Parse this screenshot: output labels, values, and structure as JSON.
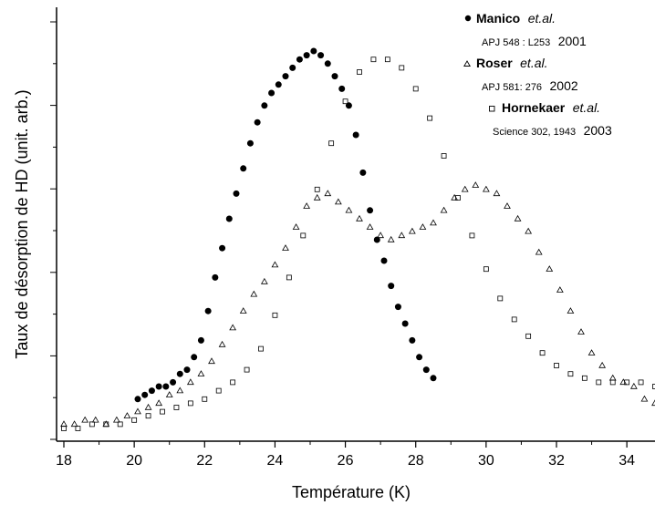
{
  "chart_data": {
    "type": "scatter",
    "xlabel": "Température (K)",
    "ylabel": "Taux de désorption de HD (unit. arb.)",
    "xlim": [
      18,
      34.8
    ],
    "ylim": [
      0,
      1
    ],
    "xticks": [
      18,
      20,
      22,
      24,
      26,
      28,
      30,
      32,
      34
    ],
    "xtick_labels": [
      "18",
      "20",
      "22",
      "24",
      "26",
      "28",
      "30",
      "32",
      "34"
    ],
    "y_tick_labels_shown": false,
    "grid": false,
    "legend_position": "top-right",
    "legend": [
      {
        "marker": "filled-circle",
        "name": "Manico",
        "etal": "et.al.",
        "ref": "APJ 548 : L253",
        "year": "2001"
      },
      {
        "marker": "open-triangle",
        "name": "Roser",
        "etal": "et.al.",
        "ref": "APJ 581: 276",
        "year": "2002"
      },
      {
        "marker": "open-square",
        "name": "Hornekaer",
        "etal": "et.al.",
        "ref": "Science 302, 1943",
        "year": "2003"
      }
    ],
    "series": [
      {
        "marker": "filled-circle",
        "x": [
          20.1,
          20.3,
          20.5,
          20.7,
          20.9,
          21.1,
          21.3,
          21.5,
          21.7,
          21.9,
          22.1,
          22.3,
          22.5,
          22.7,
          22.9,
          23.1,
          23.3,
          23.5,
          23.7,
          23.9,
          24.1,
          24.3,
          24.5,
          24.7,
          24.9,
          25.1,
          25.3,
          25.5,
          25.7,
          25.9,
          26.1,
          26.3,
          26.5,
          26.7,
          26.9,
          27.1,
          27.3,
          27.5,
          27.7,
          27.9,
          28.1,
          28.3,
          28.5
        ],
        "y": [
          0.07,
          0.08,
          0.09,
          0.1,
          0.1,
          0.11,
          0.13,
          0.14,
          0.17,
          0.21,
          0.28,
          0.36,
          0.43,
          0.5,
          0.56,
          0.62,
          0.68,
          0.73,
          0.77,
          0.8,
          0.82,
          0.84,
          0.86,
          0.88,
          0.89,
          0.9,
          0.89,
          0.87,
          0.84,
          0.81,
          0.77,
          0.7,
          0.61,
          0.52,
          0.45,
          0.4,
          0.34,
          0.29,
          0.25,
          0.21,
          0.17,
          0.14,
          0.12
        ]
      },
      {
        "marker": "open-triangle",
        "x": [
          18.0,
          18.3,
          18.6,
          18.9,
          19.2,
          19.5,
          19.8,
          20.1,
          20.4,
          20.7,
          21.0,
          21.3,
          21.6,
          21.9,
          22.2,
          22.5,
          22.8,
          23.1,
          23.4,
          23.7,
          24.0,
          24.3,
          24.6,
          24.9,
          25.2,
          25.5,
          25.8,
          26.1,
          26.4,
          26.7,
          27.0,
          27.3,
          27.6,
          27.9,
          28.2,
          28.5,
          28.8,
          29.1,
          29.4,
          29.7,
          30.0,
          30.3,
          30.6,
          30.9,
          31.2,
          31.5,
          31.8,
          32.1,
          32.4,
          32.7,
          33.0,
          33.3,
          33.6,
          33.9,
          34.2,
          34.5,
          34.8
        ],
        "y": [
          0.01,
          0.01,
          0.02,
          0.02,
          0.01,
          0.02,
          0.03,
          0.04,
          0.05,
          0.06,
          0.08,
          0.09,
          0.11,
          0.13,
          0.16,
          0.2,
          0.24,
          0.28,
          0.32,
          0.35,
          0.39,
          0.43,
          0.48,
          0.53,
          0.55,
          0.56,
          0.54,
          0.52,
          0.5,
          0.48,
          0.46,
          0.45,
          0.46,
          0.47,
          0.48,
          0.49,
          0.52,
          0.55,
          0.57,
          0.58,
          0.57,
          0.56,
          0.53,
          0.5,
          0.47,
          0.42,
          0.38,
          0.33,
          0.28,
          0.23,
          0.18,
          0.15,
          0.12,
          0.11,
          0.1,
          0.07,
          0.06
        ]
      },
      {
        "marker": "open-square",
        "x": [
          18.0,
          18.4,
          18.8,
          19.2,
          19.6,
          20.0,
          20.4,
          20.8,
          21.2,
          21.6,
          22.0,
          22.4,
          22.8,
          23.2,
          23.6,
          24.0,
          24.4,
          24.8,
          25.2,
          25.6,
          26.0,
          26.4,
          26.8,
          27.2,
          27.6,
          28.0,
          28.4,
          28.8,
          29.2,
          29.6,
          30.0,
          30.4,
          30.8,
          31.2,
          31.6,
          32.0,
          32.4,
          32.8,
          33.2,
          33.6,
          34.0,
          34.4,
          34.8
        ],
        "y": [
          0.0,
          0.0,
          0.01,
          0.01,
          0.01,
          0.02,
          0.03,
          0.04,
          0.05,
          0.06,
          0.07,
          0.09,
          0.11,
          0.14,
          0.19,
          0.27,
          0.36,
          0.46,
          0.57,
          0.68,
          0.78,
          0.85,
          0.88,
          0.88,
          0.86,
          0.81,
          0.74,
          0.65,
          0.55,
          0.46,
          0.38,
          0.31,
          0.26,
          0.22,
          0.18,
          0.15,
          0.13,
          0.12,
          0.11,
          0.11,
          0.11,
          0.11,
          0.1
        ]
      }
    ]
  }
}
